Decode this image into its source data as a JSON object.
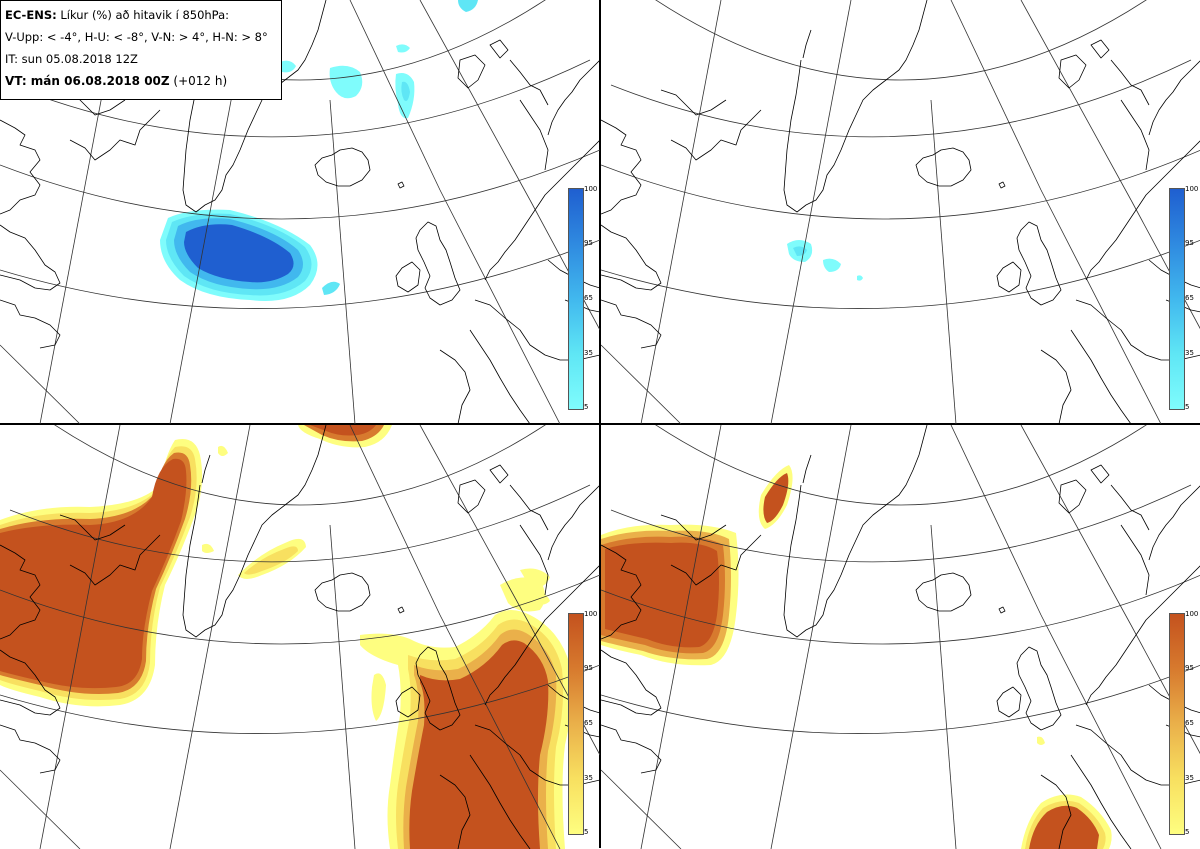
{
  "header": {
    "model": "EC-ENS:",
    "title_rest": " Líkur (%) að hitavik í 850hPa:",
    "thresholds": "V-Upp: < -4°, H-U: < -8°, V-N: > 4°, H-N: > 8°",
    "init_time": "IT: sun 05.08.2018 12Z",
    "valid_prefix": "VT: mán 06.08.2018 00Z",
    "valid_suffix": " (+012 h)"
  },
  "colorbar": {
    "ticks": [
      "100",
      "95",
      "65",
      "35",
      "5"
    ],
    "cold_colors": [
      "#7ffcfc",
      "#5fe6f5",
      "#41b8ee",
      "#2f8ae0",
      "#1f5fd0"
    ],
    "warm_colors": [
      "#fefe80",
      "#f8e060",
      "#eab04a",
      "#d77a2e",
      "#c4521e"
    ]
  },
  "panels": [
    {
      "name": "cold-moderate",
      "quadrant": "top-left",
      "threshold": "< -4°"
    },
    {
      "name": "cold-strong",
      "quadrant": "top-right",
      "threshold": "< -8°"
    },
    {
      "name": "warm-moderate",
      "quadrant": "bottom-left",
      "threshold": "> 4°"
    },
    {
      "name": "warm-strong",
      "quadrant": "bottom-right",
      "threshold": "> 8°"
    }
  ]
}
